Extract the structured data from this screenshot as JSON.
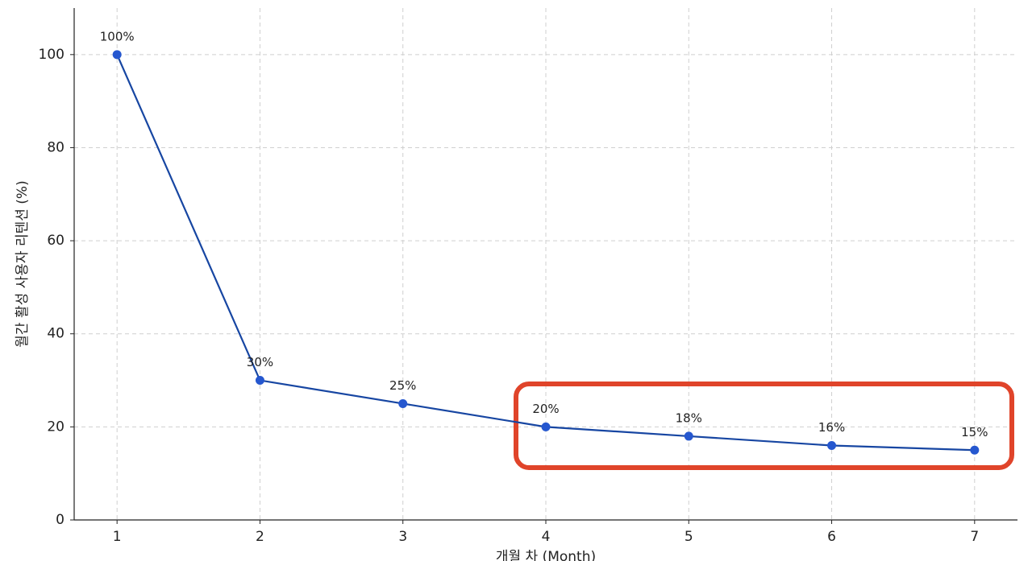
{
  "chart_data": {
    "type": "line",
    "x": [
      1,
      2,
      3,
      4,
      5,
      6,
      7
    ],
    "series": [
      {
        "values": [
          100,
          30,
          25,
          20,
          18,
          16,
          15
        ],
        "value_labels": [
          "100%",
          "30%",
          "25%",
          "20%",
          "18%",
          "16%",
          "15%"
        ],
        "color": "#1746a2",
        "marker_color": "#2557cf"
      }
    ],
    "xlabel": "개월 차 (Month)",
    "ylabel": "월간 활성 사용자 리텐션 (%)",
    "xlim": [
      0.7,
      7.3
    ],
    "xticks": [
      1,
      2,
      3,
      4,
      5,
      6,
      7
    ],
    "ylim": [
      0,
      110
    ],
    "yticks": [
      0,
      20,
      40,
      60,
      80,
      100
    ],
    "grid": true
  }
}
